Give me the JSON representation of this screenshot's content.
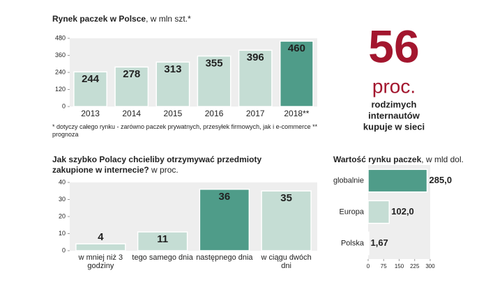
{
  "chart_data": [
    {
      "type": "bar",
      "title": "Rynek paczek w Polsce",
      "subtitle": ", w mln szt.*",
      "categories": [
        "2013",
        "2014",
        "2015",
        "2016",
        "2017",
        "2018**"
      ],
      "values": [
        244,
        278,
        313,
        355,
        396,
        460
      ],
      "colors": [
        "#c5ddd4",
        "#c5ddd4",
        "#c5ddd4",
        "#c5ddd4",
        "#c5ddd4",
        "#4f9c89"
      ],
      "ylim": [
        0,
        480
      ],
      "yticks": [
        0,
        120,
        240,
        360,
        480
      ],
      "note": "* dotyczy całego rynku - zarówno paczek prywatnych, przesyłek firmowych, jak i e-commerce ** prognoza"
    },
    {
      "type": "bar",
      "title": "Jak szybko Polacy chcieliby otrzymywać przedmioty zakupione w internecie?",
      "subtitle": " w proc.",
      "categories": [
        "w mniej niż 3 godziny",
        "tego samego dnia",
        "następnego dnia",
        "w ciągu dwóch dni"
      ],
      "values": [
        4,
        11,
        36,
        35
      ],
      "colors": [
        "#c5ddd4",
        "#c5ddd4",
        "#4f9c89",
        "#c5ddd4"
      ],
      "ylim": [
        0,
        40
      ],
      "yticks": [
        0,
        10,
        20,
        30,
        40
      ]
    },
    {
      "type": "barh",
      "title": "Wartość rynku paczek",
      "subtitle": ", w mld dol.",
      "categories": [
        "globalnie",
        "Europa",
        "Polska"
      ],
      "values": [
        285.0,
        102.0,
        1.67
      ],
      "value_labels": [
        "285,0",
        "102,0",
        "1,67"
      ],
      "colors": [
        "#4f9c89",
        "#c5ddd4",
        "#c5ddd4"
      ],
      "xlim": [
        0,
        300
      ],
      "xticks": [
        0,
        75,
        150,
        225,
        300
      ]
    }
  ],
  "stat": {
    "value": "56",
    "unit": "proc.",
    "lines": [
      "rodzimych",
      "internautów",
      "kupuje w sieci"
    ]
  }
}
